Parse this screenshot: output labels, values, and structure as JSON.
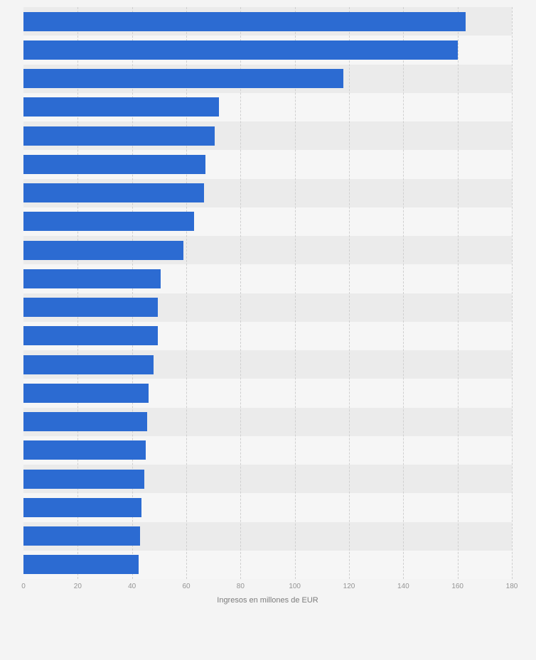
{
  "chart_data": {
    "type": "bar",
    "orientation": "horizontal",
    "title": "",
    "xlabel": "Ingresos en millones de EUR",
    "ylabel": "",
    "xlim": [
      0,
      180
    ],
    "xticks": [
      0,
      20,
      40,
      60,
      80,
      100,
      120,
      140,
      160,
      180
    ],
    "grid": "vertical-dashed",
    "legend": "none",
    "categories": [
      "",
      "",
      "",
      "",
      "",
      "",
      "",
      "",
      "",
      "",
      "",
      "",
      "",
      "",
      "",
      "",
      "",
      "",
      "",
      ""
    ],
    "values": [
      163,
      160,
      118,
      72,
      70.5,
      67,
      66.5,
      63,
      59,
      50.5,
      49.5,
      49.5,
      48,
      46,
      45.5,
      45,
      44.5,
      43.5,
      43,
      42.5
    ],
    "bar_color": "#2c6bd2",
    "band_color_odd": "#ebebeb",
    "band_color_even": "#f6f6f6",
    "background_color": "#f4f4f4",
    "gridline_color": "#cfcfcf"
  }
}
